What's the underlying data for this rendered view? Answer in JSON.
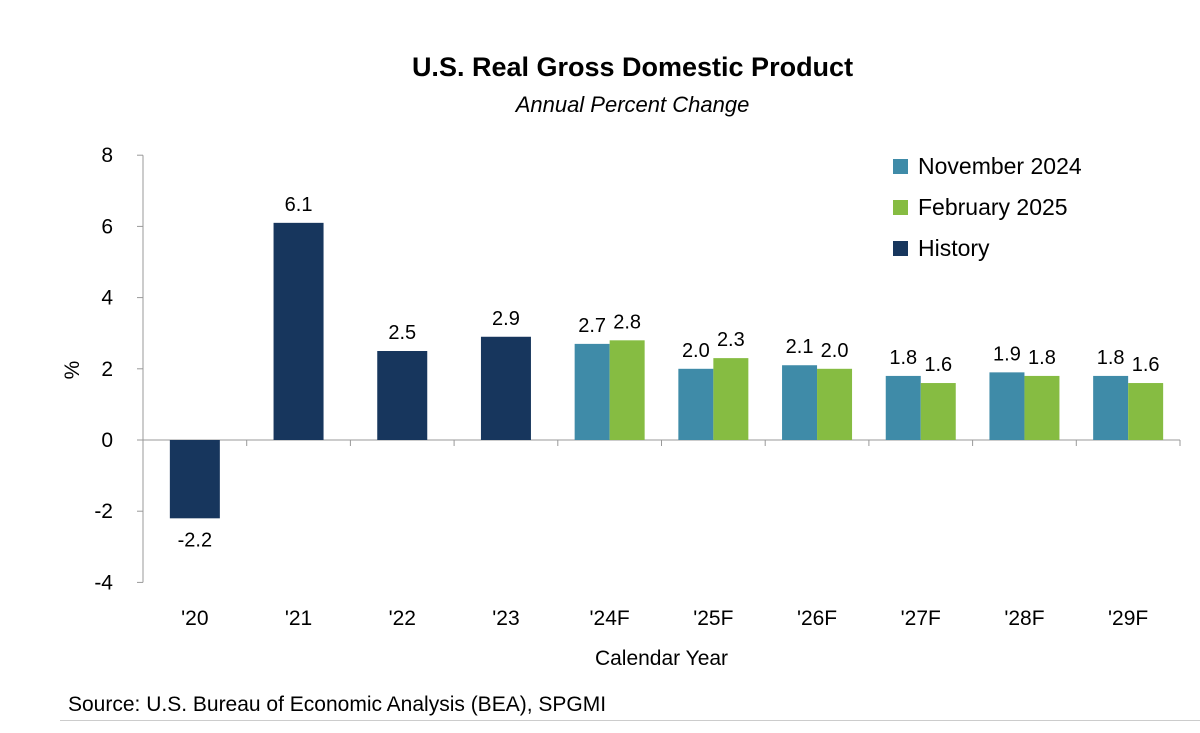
{
  "chart_data": {
    "type": "bar",
    "title": "U.S. Real Gross Domestic Product",
    "subtitle": "Annual Percent Change",
    "xlabel": "Calendar Year",
    "ylabel": "%",
    "ylim": [
      -4,
      8
    ],
    "yticks": [
      -4,
      -2,
      0,
      2,
      4,
      6,
      8
    ],
    "categories": [
      "'20",
      "'21",
      "'22",
      "'23",
      "'24F",
      "'25F",
      "'26F",
      "'27F",
      "'28F",
      "'29F"
    ],
    "series": [
      {
        "name": "November 2024",
        "color": "#3f8ba8",
        "values": [
          null,
          null,
          null,
          null,
          2.7,
          2.0,
          2.1,
          1.8,
          1.9,
          1.8
        ]
      },
      {
        "name": "February 2025",
        "color": "#86bc42",
        "values": [
          null,
          null,
          null,
          null,
          2.8,
          2.3,
          2.0,
          1.6,
          1.8,
          1.6
        ]
      },
      {
        "name": "History",
        "color": "#17365d",
        "values": [
          -2.2,
          6.1,
          2.5,
          2.9,
          null,
          null,
          null,
          null,
          null,
          null
        ]
      }
    ],
    "legend_position": "top-right",
    "grid": false,
    "source": "Source:  U.S. Bureau of Economic Analysis (BEA), SPGMI"
  }
}
